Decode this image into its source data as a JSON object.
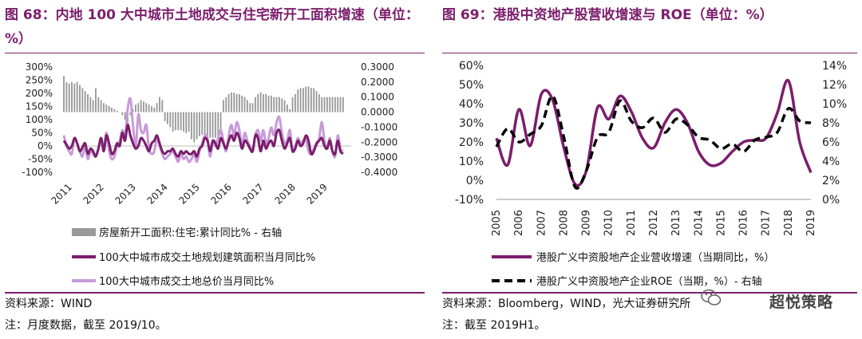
{
  "left": {
    "title": "图 68：内地 100 大中城市土地成交与住宅新开工面积增速（单位：%）",
    "source": "资料来源：WIND",
    "note": "注：月度数据，截至 2019/10。",
    "chart_data": {
      "type": "bar+line",
      "x_ticks": [
        "2011",
        "2012",
        "2013",
        "2014",
        "2015",
        "2016",
        "2017",
        "2018",
        "2019"
      ],
      "left_axis_ticks": [
        "300%",
        "250%",
        "200%",
        "150%",
        "100%",
        "50%",
        "0%",
        "-50%",
        "-100%"
      ],
      "left_ylim": [
        -100,
        300
      ],
      "right_axis_ticks": [
        "0.3000",
        "0.2000",
        "0.1000",
        "0.0000",
        "-0.1000",
        "-0.2000",
        "-0.3000",
        "-0.4000"
      ],
      "right_ylim": [
        -0.4,
        0.3
      ],
      "legend": [
        "房屋新开工面积:住宅:累计同比% - 右轴",
        "100大中城市成交土地规划建筑面积当月同比%",
        "100大中城市成交土地总价当月同比%"
      ],
      "colors": {
        "bar": "#999999",
        "line1": "#7b1e6c",
        "line2": "#c79bd8"
      },
      "series": [
        {
          "name": "房屋新开工面积:住宅:累计同比% - 右轴",
          "axis": "right",
          "kind": "bar",
          "t_start": 2011.0,
          "step": 0.0833,
          "values": [
            0.24,
            0.2,
            0.19,
            0.2,
            0.19,
            0.2,
            0.18,
            0.16,
            0.14,
            0.12,
            0.1,
            0.08,
            0.16,
            0.1,
            0.08,
            0.06,
            0.05,
            0.04,
            0.03,
            0.02,
            0.01,
            0.0,
            -0.02,
            -0.05,
            -0.1,
            -0.02,
            0.02,
            0.05,
            0.06,
            0.08,
            0.07,
            0.06,
            0.05,
            0.04,
            0.03,
            0.06,
            0.1,
            0.08,
            -0.06,
            -0.08,
            -0.1,
            -0.13,
            -0.12,
            -0.12,
            -0.12,
            -0.13,
            -0.14,
            -0.13,
            -0.18,
            -0.2,
            -0.18,
            -0.16,
            -0.15,
            -0.16,
            -0.16,
            -0.17,
            -0.17,
            -0.17,
            -0.16,
            -0.15,
            0.08,
            0.1,
            0.12,
            0.13,
            0.13,
            0.12,
            0.12,
            0.11,
            0.1,
            0.08,
            0.06,
            0.06,
            0.1,
            0.12,
            0.13,
            0.12,
            0.12,
            0.11,
            0.11,
            0.1,
            0.1,
            0.1,
            0.09,
            0.08,
            0.05,
            0.02,
            0.1,
            0.12,
            0.15,
            0.16,
            0.16,
            0.17,
            0.17,
            0.16,
            0.16,
            0.14,
            0.12,
            0.1,
            0.1,
            0.1,
            0.1,
            0.1,
            0.1,
            0.1,
            0.1,
            0.1
          ]
        },
        {
          "name": "100大中城市成交土地规划建筑面积当月同比%",
          "axis": "left",
          "kind": "line",
          "t_start": 2011.0,
          "step": 0.0833,
          "values": [
            20,
            5,
            -10,
            0,
            30,
            10,
            -20,
            -5,
            10,
            -30,
            -10,
            -20,
            -40,
            -10,
            30,
            -20,
            40,
            10,
            -30,
            -20,
            10,
            0,
            50,
            20,
            80,
            40,
            10,
            -10,
            0,
            30,
            20,
            0,
            -20,
            10,
            20,
            40,
            10,
            -20,
            -30,
            -20,
            -20,
            -10,
            -30,
            -40,
            -20,
            -30,
            -20,
            -30,
            -30,
            -20,
            -40,
            -10,
            0,
            30,
            20,
            -20,
            20,
            10,
            -10,
            30,
            10,
            -10,
            20,
            40,
            20,
            50,
            30,
            -10,
            20,
            10,
            -10,
            -20,
            40,
            30,
            -20,
            20,
            -10,
            10,
            20,
            0,
            50,
            60,
            20,
            -10,
            10,
            30,
            -20,
            -10,
            20,
            0,
            10,
            40,
            20,
            -30,
            -20,
            10,
            20,
            30,
            0,
            -10,
            20,
            -20,
            -30,
            20,
            -20,
            -30
          ]
        },
        {
          "name": "100大中城市成交土地总价当月同比%",
          "axis": "left",
          "kind": "line",
          "t_start": 2011.0,
          "step": 0.0833,
          "values": [
            40,
            0,
            -20,
            -30,
            30,
            10,
            -20,
            -40,
            0,
            -50,
            -20,
            -30,
            -40,
            -10,
            30,
            -10,
            50,
            -20,
            -50,
            -40,
            0,
            20,
            60,
            40,
            140,
            180,
            80,
            -10,
            120,
            60,
            50,
            80,
            -10,
            -30,
            -20,
            30,
            0,
            -30,
            -50,
            -40,
            -30,
            -20,
            -40,
            -60,
            -30,
            -50,
            -40,
            -60,
            -50,
            -30,
            -60,
            -20,
            10,
            40,
            30,
            -40,
            20,
            0,
            30,
            60,
            20,
            -20,
            40,
            80,
            40,
            90,
            60,
            0,
            50,
            20,
            0,
            -20,
            40,
            60,
            20,
            60,
            10,
            30,
            70,
            40,
            90,
            110,
            50,
            10,
            20,
            60,
            -20,
            0,
            30,
            10,
            20,
            30,
            -20,
            -30,
            -10,
            0,
            30,
            90,
            20,
            -10,
            30,
            -20,
            -40,
            40,
            -10,
            -20
          ]
        }
      ]
    }
  },
  "right": {
    "title": "图 69：港股中资地产股营收增速与 ROE（单位：%）",
    "source": "资料来源：Bloomberg，WIND，光大证券研究所",
    "note": "注：截至 2019H1。",
    "watermark": "超悦策略",
    "chart_data": {
      "type": "line",
      "x_ticks": [
        "2005",
        "2006",
        "2007",
        "2008",
        "2009",
        "2010",
        "2011",
        "2012",
        "2013",
        "2014",
        "2015",
        "2016",
        "2017",
        "2018",
        "2019"
      ],
      "left_axis_ticks": [
        "60%",
        "50%",
        "40%",
        "30%",
        "20%",
        "10%",
        "0%",
        "-10%"
      ],
      "left_ylim": [
        -10,
        60
      ],
      "right_axis_ticks": [
        "14%",
        "12%",
        "10%",
        "8%",
        "6%",
        "4%",
        "2%",
        "0%"
      ],
      "right_ylim": [
        0,
        14
      ],
      "legend": [
        "港股广义中资股地产企业营收增速（当期同比，%）",
        "港股广义中资股地产企业ROE（当期，%）- 右轴"
      ],
      "colors": {
        "line1": "#7b1e6c",
        "line2": "#000000"
      },
      "series": [
        {
          "name": "港股广义中资股地产企业营收增速（当期同比，%）",
          "axis": "left",
          "style": "solid",
          "x": [
            2005,
            2005.5,
            2006,
            2006.5,
            2007,
            2007.5,
            2008,
            2008.5,
            2009,
            2009.5,
            2010,
            2010.5,
            2011,
            2011.5,
            2012,
            2012.5,
            2013,
            2013.5,
            2014,
            2014.5,
            2015,
            2015.5,
            2016,
            2016.5,
            2017,
            2017.5,
            2018,
            2018.5,
            2019
          ],
          "values": [
            22,
            8,
            37,
            18,
            45,
            42,
            17,
            -2,
            5,
            38,
            32,
            44,
            36,
            22,
            17,
            30,
            37,
            30,
            15,
            8,
            9,
            15,
            20,
            21,
            22,
            35,
            52,
            20,
            4
          ]
        },
        {
          "name": "港股广义中资股地产企业ROE（当期，%）- 右轴",
          "axis": "right",
          "style": "dashed",
          "x": [
            2005,
            2005.5,
            2006,
            2006.5,
            2007,
            2007.5,
            2008,
            2008.5,
            2009,
            2009.5,
            2010,
            2010.5,
            2011,
            2011.5,
            2012,
            2012.5,
            2013,
            2013.5,
            2014,
            2014.5,
            2015,
            2015.5,
            2016,
            2016.5,
            2017,
            2017.5,
            2018,
            2018.5,
            2019
          ],
          "values": [
            5.5,
            7.4,
            6,
            6.8,
            7.7,
            10.8,
            6.5,
            1.3,
            3,
            6.5,
            7,
            10.3,
            8.2,
            7.5,
            8.5,
            7,
            8.4,
            7.8,
            6.5,
            6.2,
            5.3,
            5.8,
            5,
            6.2,
            6.5,
            7,
            9.5,
            8.2,
            8
          ]
        }
      ]
    }
  }
}
